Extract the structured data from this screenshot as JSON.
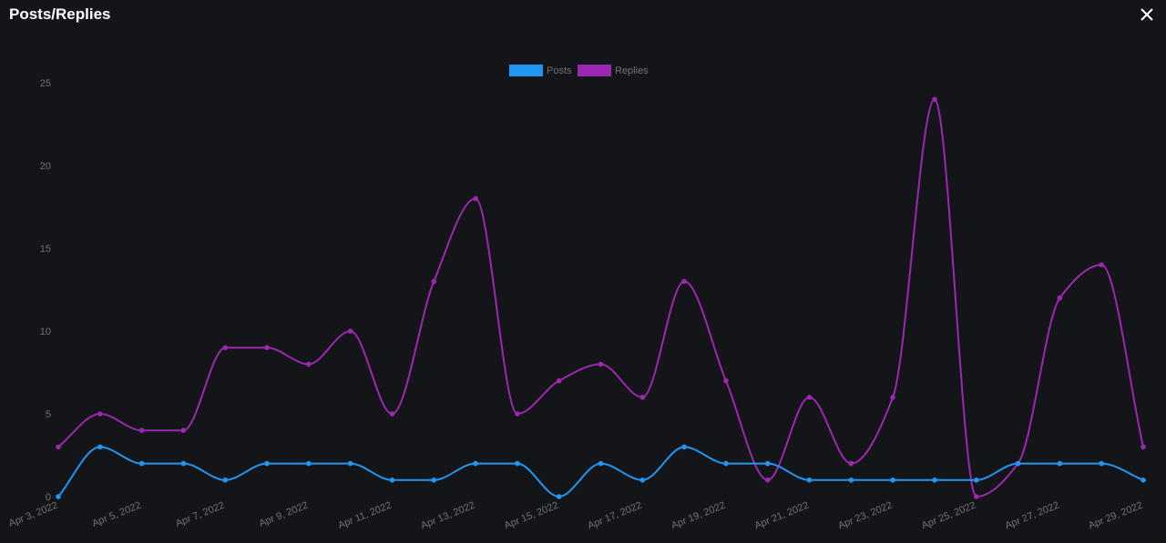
{
  "modal": {
    "title": "Posts/Replies",
    "close_icon": "close-icon"
  },
  "chart_data": {
    "type": "line",
    "xlabel": "",
    "ylabel": "",
    "ylim": [
      0,
      25
    ],
    "yticks": [
      0,
      5,
      10,
      15,
      20,
      25
    ],
    "grid": false,
    "legend": "top-center",
    "categories": [
      "Apr 3, 2022",
      "Apr 4, 2022",
      "Apr 5, 2022",
      "Apr 6, 2022",
      "Apr 7, 2022",
      "Apr 8, 2022",
      "Apr 9, 2022",
      "Apr 10, 2022",
      "Apr 11, 2022",
      "Apr 12, 2022",
      "Apr 13, 2022",
      "Apr 14, 2022",
      "Apr 15, 2022",
      "Apr 16, 2022",
      "Apr 17, 2022",
      "Apr 18, 2022",
      "Apr 19, 2022",
      "Apr 20, 2022",
      "Apr 21, 2022",
      "Apr 22, 2022",
      "Apr 23, 2022",
      "Apr 24, 2022",
      "Apr 25, 2022",
      "Apr 26, 2022",
      "Apr 27, 2022",
      "Apr 28, 2022",
      "Apr 29, 2022"
    ],
    "tick_labels": [
      "Apr 3, 2022",
      "Apr 5, 2022",
      "Apr 7, 2022",
      "Apr 9, 2022",
      "Apr 11, 2022",
      "Apr 13, 2022",
      "Apr 15, 2022",
      "Apr 17, 2022",
      "Apr 19, 2022",
      "Apr 21, 2022",
      "Apr 23, 2022",
      "Apr 25, 2022",
      "Apr 27, 2022",
      "Apr 29, 2022"
    ],
    "series": [
      {
        "name": "Posts",
        "color": "#2196f3",
        "values": [
          0,
          3,
          2,
          2,
          1,
          2,
          2,
          2,
          1,
          1,
          2,
          2,
          0,
          2,
          1,
          3,
          2,
          2,
          1,
          1,
          1,
          1,
          1,
          2,
          2,
          2,
          1
        ]
      },
      {
        "name": "Replies",
        "color": "#9c27b0",
        "values": [
          3,
          5,
          4,
          4,
          9,
          9,
          8,
          10,
          5,
          13,
          18,
          5,
          7,
          8,
          6,
          13,
          7,
          1,
          6,
          2,
          6,
          24,
          0,
          2,
          12,
          14,
          3
        ]
      }
    ]
  }
}
